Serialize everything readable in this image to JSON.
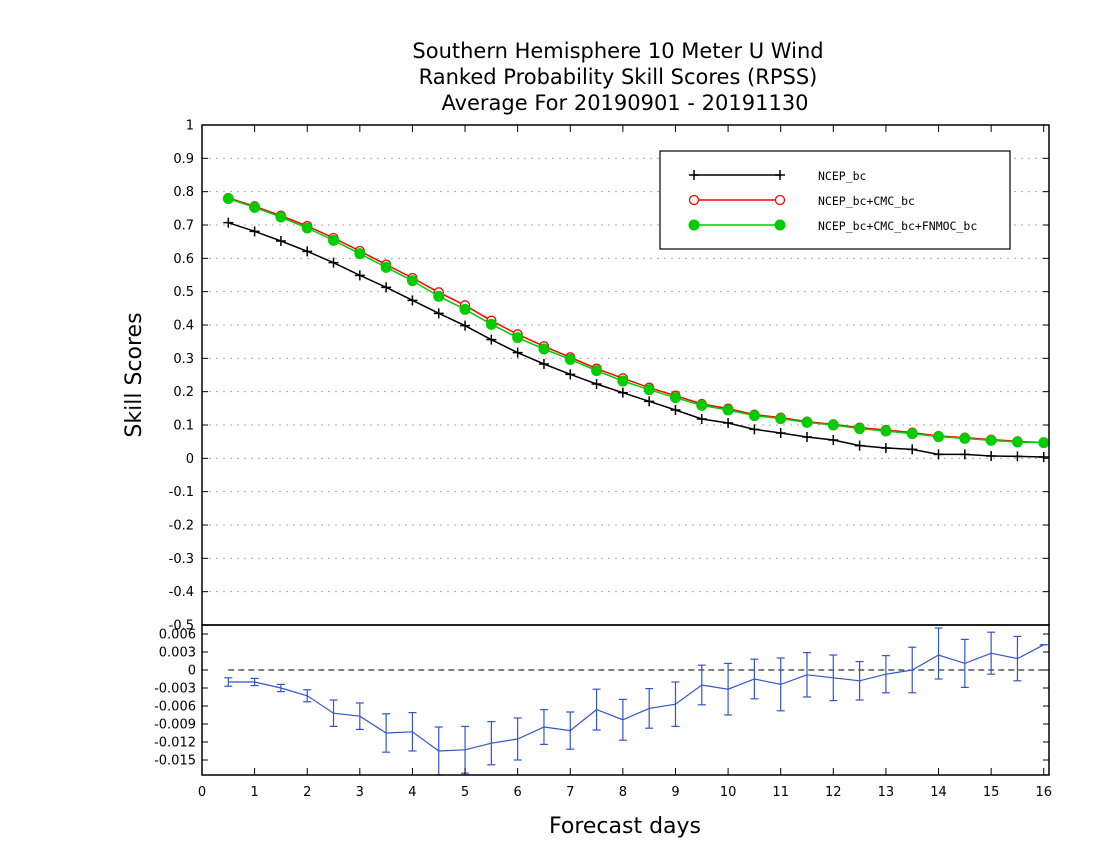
{
  "chart_data": {
    "type": "line",
    "title": "Southern Hemisphere 10 Meter U Wind",
    "subtitle": "Ranked Probability Skill Scores (RPSS)",
    "period": "Average For 20190901 - 20191130",
    "xlabel": "Forecast days",
    "ylabel": "Skill Scores",
    "legend_position": "top-right",
    "grid": true,
    "colors": {
      "ncep": "#000000",
      "ncep_cmc": "#ff0000",
      "all": "#00cc00",
      "diff": "#3355cc"
    },
    "top_panel": {
      "xlim": [
        0,
        16.1
      ],
      "ylim": [
        -0.5,
        1
      ],
      "xticks": [
        "0",
        "1",
        "2",
        "3",
        "4",
        "5",
        "6",
        "7",
        "8",
        "9",
        "10",
        "11",
        "12",
        "13",
        "14",
        "15",
        "16"
      ],
      "yticks": [
        "1",
        "0.9",
        "0.8",
        "0.7",
        "0.6",
        "0.5",
        "0.4",
        "0.3",
        "0.2",
        "0.1",
        "0",
        "-0.1",
        "-0.2",
        "-0.3",
        "-0.4",
        "-0.5"
      ],
      "x": [
        0.5,
        1,
        1.5,
        2,
        2.5,
        3,
        3.5,
        4,
        4.5,
        5,
        5.5,
        6,
        6.5,
        7,
        7.5,
        8,
        8.5,
        9,
        9.5,
        10,
        10.5,
        11,
        11.5,
        12,
        12.5,
        13,
        13.5,
        14,
        14.5,
        15,
        15.5,
        16
      ],
      "series": [
        {
          "name": "NCEP_bc",
          "color": "#000000",
          "marker": "plus",
          "values": [
            0.707,
            0.681,
            0.652,
            0.621,
            0.587,
            0.549,
            0.513,
            0.474,
            0.435,
            0.398,
            0.356,
            0.317,
            0.283,
            0.252,
            0.223,
            0.197,
            0.171,
            0.145,
            0.118,
            0.106,
            0.087,
            0.076,
            0.064,
            0.055,
            0.038,
            0.031,
            0.027,
            0.012,
            0.012,
            0.007,
            0.006,
            0.004
          ]
        },
        {
          "name": "NCEP_bc+CMC_bc",
          "color": "#ff0000",
          "marker": "open-circle",
          "values": [
            0.781,
            0.756,
            0.728,
            0.697,
            0.661,
            0.622,
            0.581,
            0.541,
            0.498,
            0.459,
            0.413,
            0.372,
            0.336,
            0.303,
            0.269,
            0.24,
            0.212,
            0.188,
            0.163,
            0.149,
            0.131,
            0.122,
            0.11,
            0.102,
            0.092,
            0.085,
            0.077,
            0.067,
            0.062,
            0.056,
            0.051,
            0.047
          ]
        },
        {
          "name": "NCEP_bc+CMC_bc+FNMOC_bc",
          "color": "#00cc00",
          "marker": "filled-circle",
          "values": [
            0.779,
            0.753,
            0.724,
            0.691,
            0.654,
            0.614,
            0.573,
            0.533,
            0.486,
            0.447,
            0.402,
            0.362,
            0.328,
            0.297,
            0.263,
            0.232,
            0.206,
            0.182,
            0.159,
            0.145,
            0.128,
            0.119,
            0.108,
            0.1,
            0.089,
            0.082,
            0.074,
            0.065,
            0.06,
            0.054,
            0.049,
            0.047
          ]
        }
      ]
    },
    "bottom_panel": {
      "ylim": [
        -0.0175,
        0.0075
      ],
      "yticks": [
        "0.006",
        "0.003",
        "0",
        "-0.003",
        "-0.006",
        "-0.009",
        "-0.012",
        "-0.015"
      ],
      "x": [
        0.5,
        1,
        1.5,
        2,
        2.5,
        3,
        3.5,
        4,
        4.5,
        5,
        5.5,
        6,
        6.5,
        7,
        7.5,
        8,
        8.5,
        9,
        9.5,
        10,
        10.5,
        11,
        11.5,
        12,
        12.5,
        13,
        13.5,
        14,
        14.5,
        15,
        15.5,
        16
      ],
      "values": [
        -0.002,
        -0.002,
        -0.003,
        -0.0043,
        -0.0072,
        -0.0077,
        -0.0105,
        -0.0103,
        -0.0135,
        -0.0133,
        -0.0122,
        -0.0115,
        -0.0095,
        -0.0101,
        -0.0066,
        -0.0083,
        -0.0064,
        -0.0057,
        -0.0025,
        -0.0032,
        -0.0015,
        -0.0024,
        -0.0008,
        -0.0013,
        -0.0018,
        -0.0007,
        0,
        0.0025,
        0.0011,
        0.0028,
        0.0019,
        0.0042
      ],
      "err_low": [
        -0.0027,
        -0.0026,
        -0.0036,
        -0.0053,
        -0.0094,
        -0.0099,
        -0.0137,
        -0.0135,
        -0.0175,
        -0.0172,
        -0.0158,
        -0.015,
        -0.0124,
        -0.0132,
        -0.01,
        -0.0117,
        -0.0097,
        -0.0094,
        -0.0058,
        -0.0075,
        -0.0048,
        -0.0068,
        -0.0045,
        -0.0051,
        -0.005,
        -0.0038,
        -0.0038,
        -0.0015,
        -0.0029,
        -0.0007,
        -0.0018,
        0.0042
      ],
      "err_high": [
        -0.0013,
        -0.0014,
        -0.0024,
        -0.0033,
        -0.005,
        -0.0055,
        -0.0073,
        -0.0071,
        -0.0095,
        -0.0094,
        -0.0086,
        -0.008,
        -0.0066,
        -0.007,
        -0.0032,
        -0.0049,
        -0.0031,
        -0.002,
        0.0008,
        0.0011,
        0.0018,
        0.002,
        0.0029,
        0.0025,
        0.0014,
        0.0024,
        0.0038,
        0.007,
        0.0051,
        0.0063,
        0.0056,
        0.0042
      ],
      "zero_line": 0
    }
  }
}
